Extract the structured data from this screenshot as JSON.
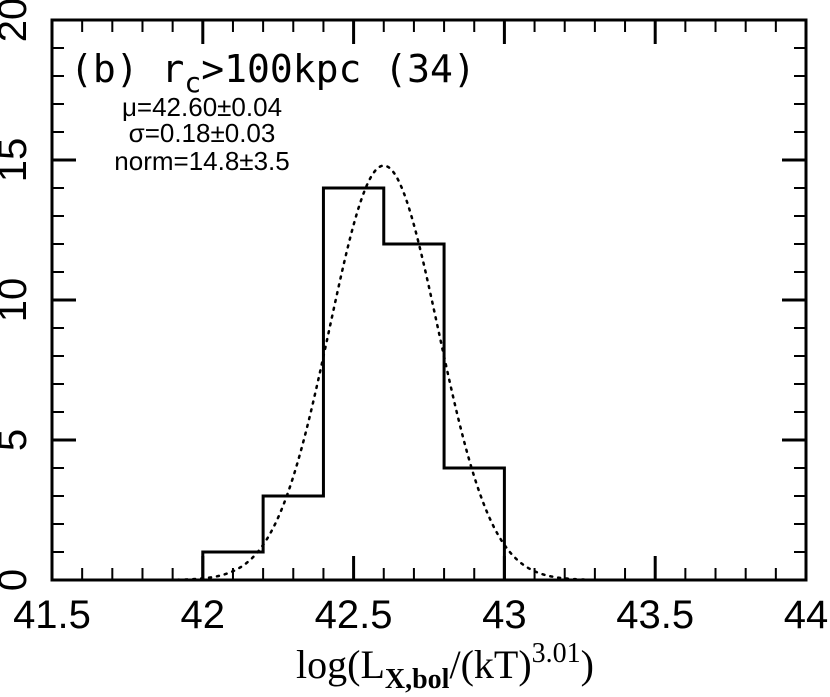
{
  "chart_data": {
    "type": "histogram",
    "xlim": [
      41.5,
      44
    ],
    "ylim": [
      0,
      20
    ],
    "x_ticks": [
      41.5,
      42,
      42.5,
      43,
      43.5,
      44
    ],
    "x_tick_labels": [
      "41.5",
      "42",
      "42.5",
      "43",
      "43.5",
      "44"
    ],
    "y_ticks": [
      0,
      5,
      10,
      15,
      20
    ],
    "y_tick_labels": [
      "0",
      "5",
      "10",
      "15",
      "20"
    ],
    "bins": [
      42.0,
      42.2,
      42.4,
      42.6,
      42.8,
      43.0
    ],
    "counts": [
      1,
      3,
      14,
      12,
      4
    ],
    "gaussian_fit": {
      "mu": 42.6,
      "sigma": 0.18,
      "norm": 14.8
    },
    "panel_label": {
      "prefix": "(b) r",
      "subscript": "c",
      "suffix": ">100kpc (34)"
    },
    "stats": [
      "μ=42.60±0.04",
      "σ=0.18±0.03",
      "norm=14.8±3.5"
    ],
    "xlabel": {
      "prefix": "log(L",
      "subscript": "X,bol",
      "middle": "/(kT)",
      "superscript": "3.01",
      "suffix": ")"
    },
    "grid": false,
    "legend": "none"
  }
}
